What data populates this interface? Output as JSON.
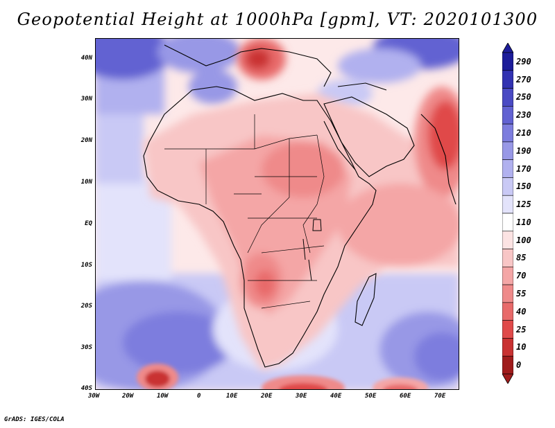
{
  "title": "Geopotential Height at 1000hPa [gpm], VT: 2020101300",
  "credit": "GrADS: IGES/COLA",
  "map": {
    "lat_labels": [
      "40N",
      "30N",
      "20N",
      "10N",
      "EQ",
      "10S",
      "20S",
      "30S",
      "40S"
    ],
    "lon_labels": [
      "30W",
      "20W",
      "10W",
      "0",
      "10E",
      "20E",
      "30E",
      "40E",
      "50E",
      "60E",
      "70E"
    ]
  },
  "colorbar": {
    "levels": [
      "0",
      "10",
      "25",
      "40",
      "55",
      "70",
      "85",
      "100",
      "110",
      "125",
      "150",
      "170",
      "190",
      "210",
      "230",
      "250",
      "270",
      "290"
    ],
    "colors": [
      "#a01c1c",
      "#c93232",
      "#e04a4a",
      "#e86a6a",
      "#ef8a8a",
      "#f4a6a6",
      "#f8c6c6",
      "#fce3e3",
      "#ffffff",
      "#e3e3fb",
      "#c9c9f5",
      "#b1b1ef",
      "#9898e6",
      "#7d7dde",
      "#6262d2",
      "#4a4ac4",
      "#3232b2",
      "#1c1c9a"
    ]
  }
}
